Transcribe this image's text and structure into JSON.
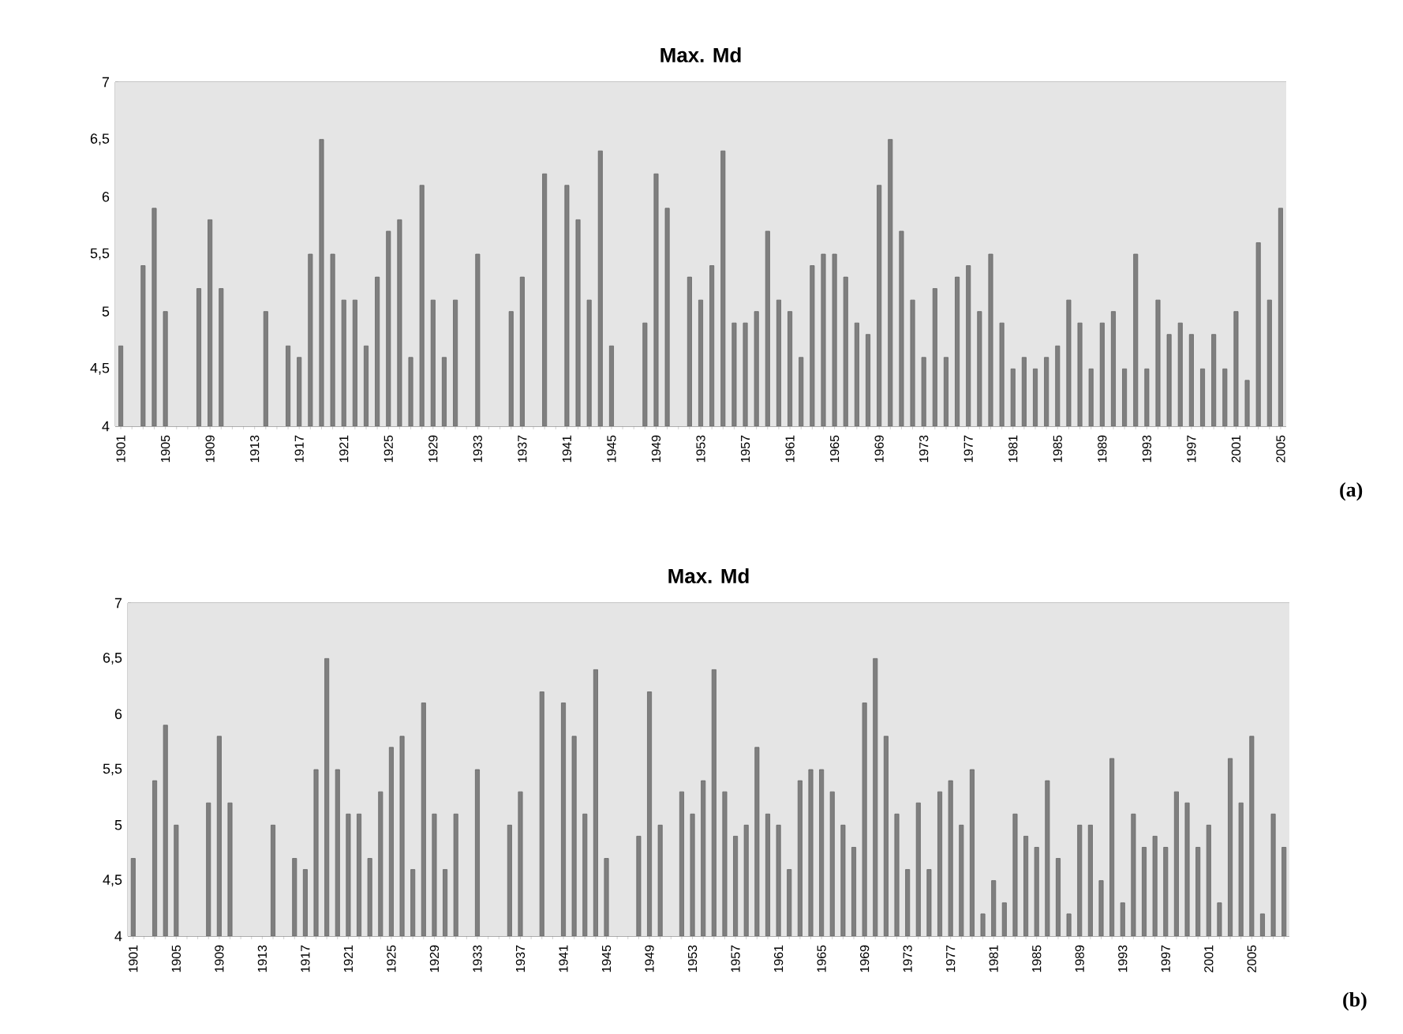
{
  "chart_data": [
    {
      "type": "bar",
      "title": "Max. Md",
      "color": "#7f7f7f",
      "grid": "y",
      "ylim": [
        4,
        7
      ],
      "yticks": [
        4,
        {
          "value": 4.5,
          "label": "4,5"
        },
        5,
        {
          "value": 5.5,
          "label": "5,5"
        },
        6,
        {
          "value": 6.5,
          "label": "6,5"
        },
        7
      ],
      "annotations": [
        "(a)"
      ],
      "categories": [
        "1901",
        null,
        null,
        null,
        "1905",
        null,
        null,
        null,
        "1909",
        null,
        null,
        null,
        "1913",
        null,
        null,
        null,
        "1917",
        null,
        null,
        null,
        "1921",
        null,
        null,
        null,
        "1925",
        null,
        null,
        null,
        "1929",
        null,
        null,
        null,
        "1933",
        null,
        null,
        null,
        "1937",
        null,
        null,
        null,
        "1941",
        null,
        null,
        null,
        "1945",
        null,
        null,
        null,
        "1949",
        null,
        null,
        null,
        "1953",
        null,
        null,
        null,
        "1957",
        null,
        null,
        null,
        "1961",
        null,
        null,
        null,
        "1965",
        null,
        null,
        null,
        "1969",
        null,
        null,
        null,
        "1973",
        null,
        null,
        null,
        "1977",
        null,
        null,
        null,
        "1981",
        null,
        null,
        null,
        "1985",
        null,
        null,
        null,
        "1989",
        null,
        null,
        null,
        "1993",
        null,
        null,
        null,
        "1997",
        null,
        null,
        null,
        "2001",
        null,
        null,
        null,
        "2005"
      ],
      "values": [
        4.7,
        null,
        5.4,
        5.9,
        5.0,
        null,
        null,
        5.2,
        5.8,
        5.2,
        null,
        null,
        null,
        5.0,
        null,
        4.7,
        4.6,
        5.5,
        6.5,
        5.5,
        5.1,
        5.1,
        4.7,
        5.3,
        5.7,
        5.8,
        4.6,
        6.1,
        5.1,
        4.6,
        5.1,
        null,
        5.5,
        null,
        null,
        5.0,
        5.3,
        null,
        6.2,
        null,
        6.1,
        5.8,
        5.1,
        6.4,
        4.7,
        null,
        null,
        4.9,
        6.2,
        5.9,
        null,
        5.3,
        5.1,
        5.4,
        6.4,
        4.9,
        4.9,
        5.0,
        5.7,
        5.1,
        5.0,
        4.6,
        5.4,
        5.5,
        5.5,
        5.3,
        4.9,
        4.8,
        6.1,
        6.5,
        5.7,
        5.1,
        4.6,
        5.2,
        4.6,
        5.3,
        5.4,
        5.0,
        5.5,
        4.9,
        4.5,
        4.6,
        4.5,
        4.6,
        4.7,
        5.1,
        4.9,
        4.5,
        4.9,
        5.0,
        4.5,
        5.5,
        4.5,
        5.1,
        4.8,
        4.9,
        4.8,
        4.5,
        4.8,
        4.5,
        5.0,
        4.4,
        5.6,
        5.1,
        5.9
      ]
    },
    {
      "type": "bar",
      "title": "Max. Md",
      "color": "#7f7f7f",
      "grid": "y",
      "ylim": [
        4,
        7
      ],
      "yticks": [
        4,
        {
          "value": 4.5,
          "label": "4,5"
        },
        5,
        {
          "value": 5.5,
          "label": "5,5"
        },
        6,
        {
          "value": 6.5,
          "label": "6,5"
        },
        7
      ],
      "annotations": [
        "(b)"
      ],
      "categories": [
        "1901",
        null,
        null,
        null,
        "1905",
        null,
        null,
        null,
        "1909",
        null,
        null,
        null,
        "1913",
        null,
        null,
        null,
        "1917",
        null,
        null,
        null,
        "1921",
        null,
        null,
        null,
        "1925",
        null,
        null,
        null,
        "1929",
        null,
        null,
        null,
        "1933",
        null,
        null,
        null,
        "1937",
        null,
        null,
        null,
        "1941",
        null,
        null,
        null,
        "1945",
        null,
        null,
        null,
        "1949",
        null,
        null,
        null,
        "1953",
        null,
        null,
        null,
        "1957",
        null,
        null,
        null,
        "1961",
        null,
        null,
        null,
        "1965",
        null,
        null,
        null,
        "1969",
        null,
        null,
        null,
        "1973",
        null,
        null,
        null,
        "1977",
        null,
        null,
        null,
        "1981",
        null,
        null,
        null,
        "1985",
        null,
        null,
        null,
        "1989",
        null,
        null,
        null,
        "1993",
        null,
        null,
        null,
        "1997",
        null,
        null,
        null,
        "2001",
        null,
        null,
        null,
        "2005",
        null,
        null,
        null
      ],
      "values": [
        4.7,
        null,
        5.4,
        5.9,
        5.0,
        null,
        null,
        5.2,
        5.8,
        5.2,
        null,
        null,
        null,
        5.0,
        null,
        4.7,
        4.6,
        5.5,
        6.5,
        5.5,
        5.1,
        5.1,
        4.7,
        5.3,
        5.7,
        5.8,
        4.6,
        6.1,
        5.1,
        4.6,
        5.1,
        null,
        5.5,
        null,
        null,
        5.0,
        5.3,
        null,
        6.2,
        null,
        6.1,
        5.8,
        5.1,
        6.4,
        4.7,
        null,
        null,
        4.9,
        6.2,
        5.0,
        null,
        5.3,
        5.1,
        5.4,
        6.4,
        5.3,
        4.9,
        5.0,
        5.7,
        5.1,
        5.0,
        4.6,
        5.4,
        5.5,
        5.5,
        5.3,
        5.0,
        4.8,
        6.1,
        6.5,
        5.8,
        5.1,
        4.6,
        5.2,
        4.6,
        5.3,
        5.4,
        5.0,
        5.5,
        4.2,
        4.5,
        4.3,
        5.1,
        4.9,
        4.8,
        5.4,
        4.7,
        4.2,
        5.0,
        5.0,
        4.5,
        5.6,
        4.3,
        5.1,
        4.8,
        4.9,
        4.8,
        5.3,
        5.2,
        4.8,
        5.0,
        4.3,
        5.6,
        5.2,
        5.8,
        4.2,
        5.1,
        4.8
      ]
    }
  ]
}
